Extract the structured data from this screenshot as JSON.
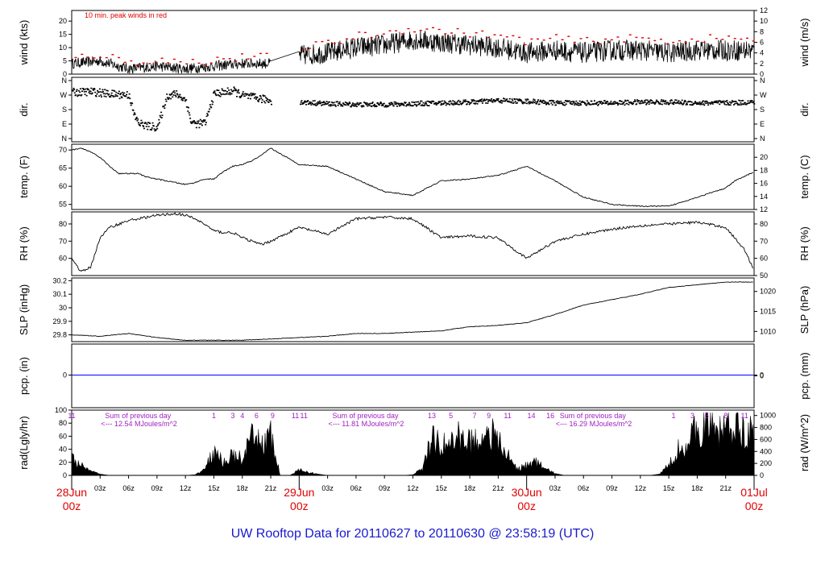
{
  "title": "UW Rooftop Data for 20110627  to  20110630 @ 23:58:19  (UTC)",
  "time_axis": {
    "hour_ticks": [
      "03z",
      "06z",
      "09z",
      "12z",
      "15z",
      "18z",
      "21z"
    ],
    "day_labels": [
      {
        "date": "28Jun",
        "time": "00z"
      },
      {
        "date": "29Jun",
        "time": "00z"
      },
      {
        "date": "30Jun",
        "time": "00z"
      },
      {
        "date": "01Jul",
        "time": "00z"
      }
    ]
  },
  "chart_data": [
    {
      "type": "line",
      "name": "wind",
      "ylabel": "wind (kts)",
      "ylabel_right": "wind (m/s)",
      "ylim": [
        0,
        24
      ],
      "yticks": [
        0,
        5,
        10,
        15,
        20
      ],
      "ylim_right": [
        0,
        12
      ],
      "yticks_right": [
        0,
        2,
        4,
        6,
        8,
        10,
        12
      ],
      "annotation": "10 min. peak winds in red",
      "x": [
        0,
        3,
        6,
        9,
        12,
        15,
        18,
        21,
        24,
        27,
        30,
        33,
        36,
        39,
        42,
        45,
        48,
        51,
        54,
        57,
        60,
        63,
        66,
        69,
        72
      ],
      "series": [
        {
          "values": [
            4,
            5,
            2,
            3,
            2,
            3,
            4,
            4,
            7,
            8,
            10,
            11,
            13,
            12,
            11,
            10,
            8,
            9,
            8,
            9,
            9,
            8,
            9,
            9,
            9
          ]
        },
        {
          "values": [
            6,
            7,
            4,
            5,
            4,
            5,
            6,
            6,
            10,
            11,
            14,
            15,
            17,
            16,
            15,
            14,
            12,
            13,
            12,
            13,
            13,
            12,
            13,
            13,
            13
          ]
        }
      ],
      "gaps": [
        [
          21,
          24
        ]
      ],
      "colors": [
        "#000000",
        "#e00000"
      ]
    },
    {
      "type": "scatter",
      "name": "dir.",
      "ylabel": "dir.",
      "ylabel_right": "dir.",
      "yticks": [
        "N",
        "E",
        "S",
        "W",
        "N"
      ],
      "x": [
        0,
        2,
        4,
        6,
        6.5,
        7,
        8,
        9,
        10,
        11,
        12,
        12.5,
        13,
        14,
        15,
        16,
        17,
        18,
        19,
        20,
        21,
        24,
        27,
        30,
        33,
        36,
        39,
        42,
        45,
        48,
        51,
        54,
        57,
        60,
        63,
        66,
        69,
        72
      ],
      "values": [
        290,
        295,
        280,
        275,
        150,
        100,
        80,
        75,
        270,
        280,
        240,
        110,
        95,
        100,
        285,
        290,
        300,
        270,
        260,
        250,
        240,
        230,
        220,
        215,
        215,
        220,
        225,
        230,
        240,
        235,
        225,
        225,
        225,
        230,
        230,
        225,
        225,
        230
      ],
      "gaps": [
        [
          21,
          24
        ]
      ]
    },
    {
      "type": "line",
      "name": "temp",
      "ylabel": "temp. (F)",
      "ylabel_right": "temp. (C)",
      "ylim": [
        53.6,
        71.6
      ],
      "yticks": [
        55,
        60,
        65,
        70
      ],
      "yticks_right": [
        12,
        14,
        16,
        18,
        20
      ],
      "x": [
        0,
        1,
        2,
        3,
        4,
        5,
        6,
        7,
        8,
        9,
        10,
        11,
        12,
        13,
        14,
        15,
        16,
        17,
        18,
        19,
        20,
        21,
        24,
        27,
        30,
        33,
        36,
        39,
        42,
        45,
        48,
        51,
        54,
        57,
        60,
        63,
        66,
        69,
        70,
        72
      ],
      "values": [
        70,
        70.5,
        69.5,
        68,
        65.5,
        63.5,
        63.5,
        63.5,
        62.5,
        62,
        61.5,
        61,
        60.5,
        61,
        62,
        62,
        64,
        65.5,
        66,
        67,
        68.5,
        70.5,
        66,
        65.5,
        62,
        58.5,
        57.5,
        61.5,
        62,
        63,
        65.5,
        61.5,
        57,
        55,
        54.5,
        54.5,
        57,
        59.5,
        61.5,
        64
      ]
    },
    {
      "type": "line",
      "name": "RH",
      "ylabel": "RH (%)",
      "ylabel_right": "RH (%)",
      "ylim": [
        50,
        87
      ],
      "yticks": [
        60,
        70,
        80
      ],
      "yticks_right": [
        50,
        60,
        70,
        80
      ],
      "x": [
        0,
        1,
        2,
        3,
        4,
        5,
        6,
        7,
        8,
        9,
        10,
        11,
        12,
        13,
        14,
        15,
        16,
        17,
        18,
        19,
        20,
        21,
        24,
        27,
        30,
        33,
        36,
        39,
        42,
        45,
        48,
        51,
        54,
        57,
        60,
        63,
        66,
        69,
        71,
        72
      ],
      "values": [
        60,
        52,
        55,
        72,
        78,
        80,
        82,
        83,
        84,
        85,
        85.5,
        86,
        85,
        83,
        80,
        76,
        75,
        75,
        72,
        70,
        68,
        70,
        78,
        74,
        83,
        84,
        83,
        72,
        73,
        72,
        60,
        70,
        74,
        77,
        79,
        80,
        81,
        78,
        65,
        53
      ]
    },
    {
      "type": "line",
      "name": "SLP",
      "ylabel": "SLP (inHg)",
      "ylabel_right": "SLP (hPa)",
      "ylim": [
        29.75,
        30.22
      ],
      "yticks": [
        29.8,
        29.9,
        30.0,
        30.1,
        30.2
      ],
      "yticks_right": [
        1010,
        1015,
        1020
      ],
      "x": [
        0,
        3,
        6,
        9,
        12,
        15,
        18,
        21,
        24,
        27,
        30,
        33,
        36,
        39,
        42,
        45,
        48,
        51,
        54,
        57,
        60,
        63,
        66,
        69,
        72
      ],
      "values": [
        29.8,
        29.79,
        29.81,
        29.78,
        29.76,
        29.76,
        29.76,
        29.77,
        29.78,
        29.79,
        29.81,
        29.81,
        29.82,
        29.83,
        29.86,
        29.87,
        29.89,
        29.95,
        30.02,
        30.06,
        30.1,
        30.15,
        30.17,
        30.19,
        30.19
      ]
    },
    {
      "type": "line",
      "name": "pcp",
      "ylabel": "pcp. (in)",
      "ylabel_right": "pcp. (mm)",
      "yticks": [
        0
      ],
      "yticks_right": [
        0
      ],
      "x": [
        0,
        72
      ],
      "values": [
        0,
        0
      ],
      "colors": [
        "#0000ff"
      ]
    },
    {
      "type": "area",
      "name": "rad",
      "ylabel": "rad(Lgly/hr)",
      "ylabel_right": "rad (W/m^2)",
      "ylim": [
        0,
        100
      ],
      "yticks": [
        0,
        20,
        40,
        60,
        80,
        100
      ],
      "yticks_right": [
        0,
        200,
        400,
        600,
        800,
        1000
      ],
      "x": [
        0,
        1,
        2,
        3,
        4,
        5,
        6,
        7,
        8,
        9,
        10,
        11,
        12,
        13,
        14,
        15,
        16,
        17,
        18,
        19,
        20,
        21,
        22,
        23,
        24,
        25,
        26,
        27,
        28,
        29,
        30,
        31,
        32,
        33,
        34,
        35,
        36,
        37,
        38,
        39,
        40,
        41,
        42,
        43,
        44,
        45,
        46,
        47,
        48,
        49,
        50,
        51,
        52,
        53,
        54,
        55,
        56,
        57,
        58,
        59,
        60,
        61,
        62,
        63,
        64,
        65,
        66,
        67,
        68,
        69,
        70,
        71,
        72
      ],
      "values": [
        25,
        15,
        6,
        2,
        0,
        0,
        0,
        0,
        0,
        0,
        0,
        0,
        0,
        1,
        10,
        35,
        20,
        30,
        25,
        55,
        50,
        60,
        0,
        0,
        8,
        5,
        2,
        0,
        0,
        0,
        0,
        0,
        0,
        0,
        0,
        0,
        1,
        10,
        55,
        45,
        50,
        60,
        50,
        55,
        70,
        50,
        30,
        10,
        15,
        20,
        10,
        3,
        0,
        0,
        0,
        0,
        0,
        0,
        0,
        0,
        0,
        0,
        2,
        15,
        40,
        50,
        70,
        85,
        60,
        80,
        75,
        70,
        65
      ],
      "hour_labels": [
        "1",
        "3",
        "4",
        "6",
        "9",
        "11",
        "13",
        "5",
        "7",
        "9",
        "11",
        "14",
        "16",
        "1",
        "3",
        "6",
        "8",
        "11"
      ],
      "day_notes": [
        {
          "line1": "Sum of previous day",
          "line2": "<--- 12.54 MJoules/m^2"
        },
        {
          "line1": "Sum of previous day",
          "line2": "<--- 11.81 MJoules/m^2"
        },
        {
          "line1": "Sum of previous day",
          "line2": "<--- 16.29 MJoules/m^2"
        }
      ],
      "hour_label_top": "11"
    }
  ]
}
